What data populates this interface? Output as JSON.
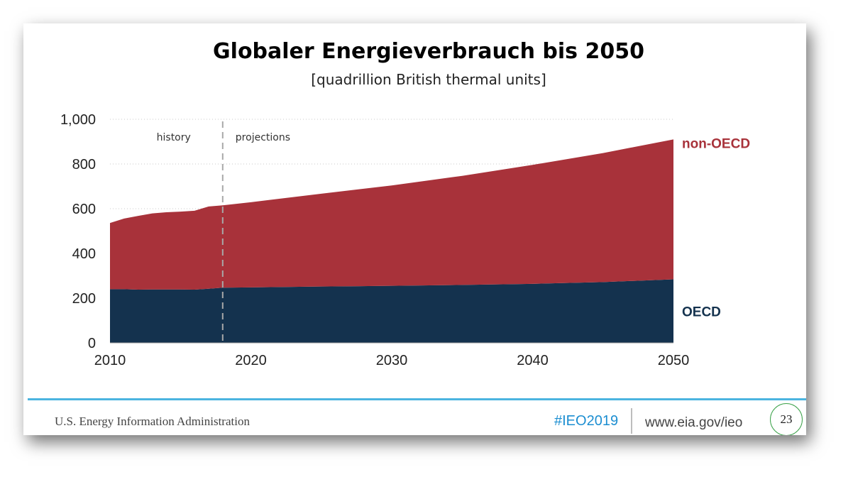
{
  "slide": {
    "title": "Globaler Energieverbrauch bis 2050",
    "subtitle": "[quadrillion British thermal units]",
    "footer": {
      "organization": "U.S. Energy Information Administration",
      "hashtag": "#IEO2019",
      "url": "www.eia.gov/ieo",
      "page_number": "23"
    }
  },
  "colors": {
    "non_oecd": "#a8323a",
    "oecd": "#14324e",
    "footer_accent": "#4bb4e0",
    "hashtag": "#1c8ed1",
    "page_badge_border": "#3ca24a"
  },
  "chart_data": {
    "type": "area",
    "stacked": true,
    "x": [
      2010,
      2011,
      2012,
      2013,
      2014,
      2015,
      2016,
      2017,
      2018,
      2020,
      2025,
      2030,
      2035,
      2040,
      2045,
      2050
    ],
    "series": [
      {
        "name": "OECD",
        "color": "#14324e",
        "values": [
          240,
          240,
          238,
          239,
          239,
          239,
          238,
          242,
          247,
          248,
          252,
          255,
          259,
          264,
          272,
          284
        ]
      },
      {
        "name": "non-OECD",
        "color": "#a8323a",
        "values": [
          296,
          316,
          330,
          340,
          345,
          348,
          353,
          368,
          368,
          381,
          415,
          449,
          488,
          532,
          577,
          626
        ]
      }
    ],
    "xlim": [
      2010,
      2050
    ],
    "ylim": [
      0,
      1000
    ],
    "xticks": [
      "2010",
      "2020",
      "2030",
      "2040",
      "2050"
    ],
    "yticks": [
      "0",
      "200",
      "400",
      "600",
      "800",
      "1,000"
    ],
    "grid": "horizontal dotted",
    "divider": {
      "x": 2018,
      "left_label": "history",
      "right_label": "projections"
    }
  }
}
